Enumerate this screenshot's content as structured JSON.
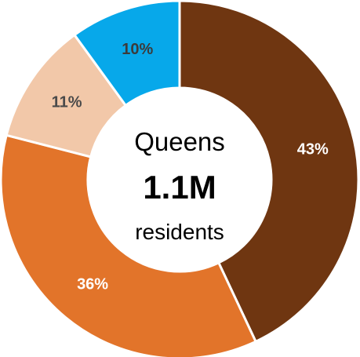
{
  "chart_data": {
    "type": "pie",
    "style": "donut",
    "categories": [
      "",
      "",
      "",
      ""
    ],
    "values": [
      43,
      36,
      11,
      10
    ],
    "labels": [
      "43%",
      "36%",
      "11%",
      "10%"
    ],
    "colors": [
      "#6f3611",
      "#e2742a",
      "#f2c8a9",
      "#07a8ea"
    ],
    "label_colors": [
      "#ffffff",
      "#ffffff",
      "#4a4a4a",
      "#3b3b3b"
    ],
    "start": "12 o'clock",
    "direction": "clockwise"
  },
  "center": {
    "line1": "Queens",
    "line2": "1.1M",
    "line3": "residents"
  }
}
